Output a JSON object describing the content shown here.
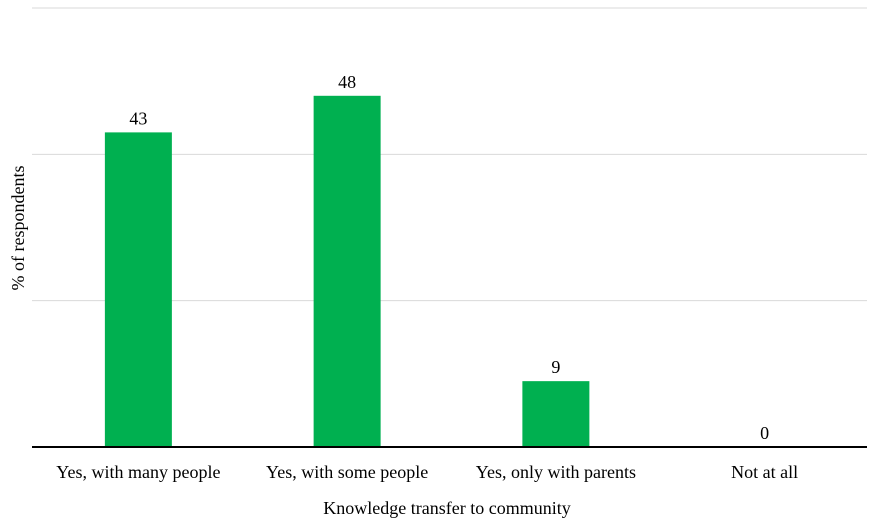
{
  "chart_data": {
    "type": "bar",
    "categories": [
      "Yes, with many people",
      "Yes, with some people",
      "Yes, only with parents",
      "Not at all"
    ],
    "values": [
      43,
      48,
      9,
      0
    ],
    "data_labels": [
      "43",
      "48",
      "9",
      "0"
    ],
    "title": "",
    "xlabel": "Knowledge transfer to community",
    "ylabel": "% of respondents",
    "ylim": [
      0,
      60
    ],
    "grid": true,
    "legend": "none",
    "colors": {
      "bar": "#00b050",
      "grid": "#d9d9d9",
      "axis": "#000000"
    }
  }
}
